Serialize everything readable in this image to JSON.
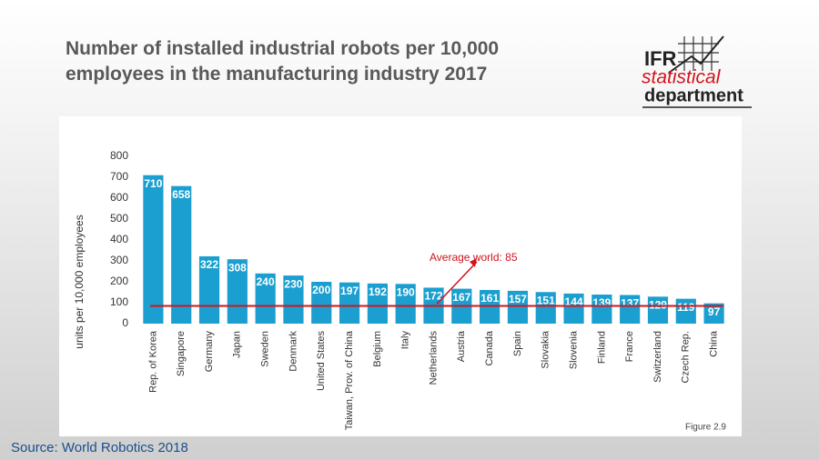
{
  "chart_data": {
    "type": "bar",
    "title": "Number of installed industrial robots per 10,000 employees in the manufacturing industry 2017",
    "y_label": "units per 10,000 employees",
    "categories": [
      "Rep. of Korea",
      "Singapore",
      "Germany",
      "Japan",
      "Sweden",
      "Denmark",
      "United States",
      "Taiwan, Prov. of China",
      "Belgium",
      "Italy",
      "Netherlands",
      "Austria",
      "Canada",
      "Spain",
      "Slovakia",
      "Slovenia",
      "Finland",
      "France",
      "Switzerland",
      "Czech Rep.",
      "China"
    ],
    "values": [
      710,
      658,
      322,
      308,
      240,
      230,
      200,
      197,
      192,
      190,
      172,
      167,
      161,
      157,
      151,
      144,
      139,
      137,
      129,
      119,
      97
    ],
    "color": "#1a9fd0",
    "ylim": [
      0,
      800
    ],
    "yticks": [
      0,
      100,
      200,
      300,
      400,
      500,
      600,
      700,
      800
    ],
    "grid": false,
    "average_line": 85,
    "average_color": "#d0141e",
    "annotation": "Average world: 85",
    "figure_label": "Figure 2.9",
    "source": "Source: World Robotics 2018"
  },
  "logo": {
    "line1": "IFR",
    "line2": "statistical",
    "line3": "department"
  }
}
